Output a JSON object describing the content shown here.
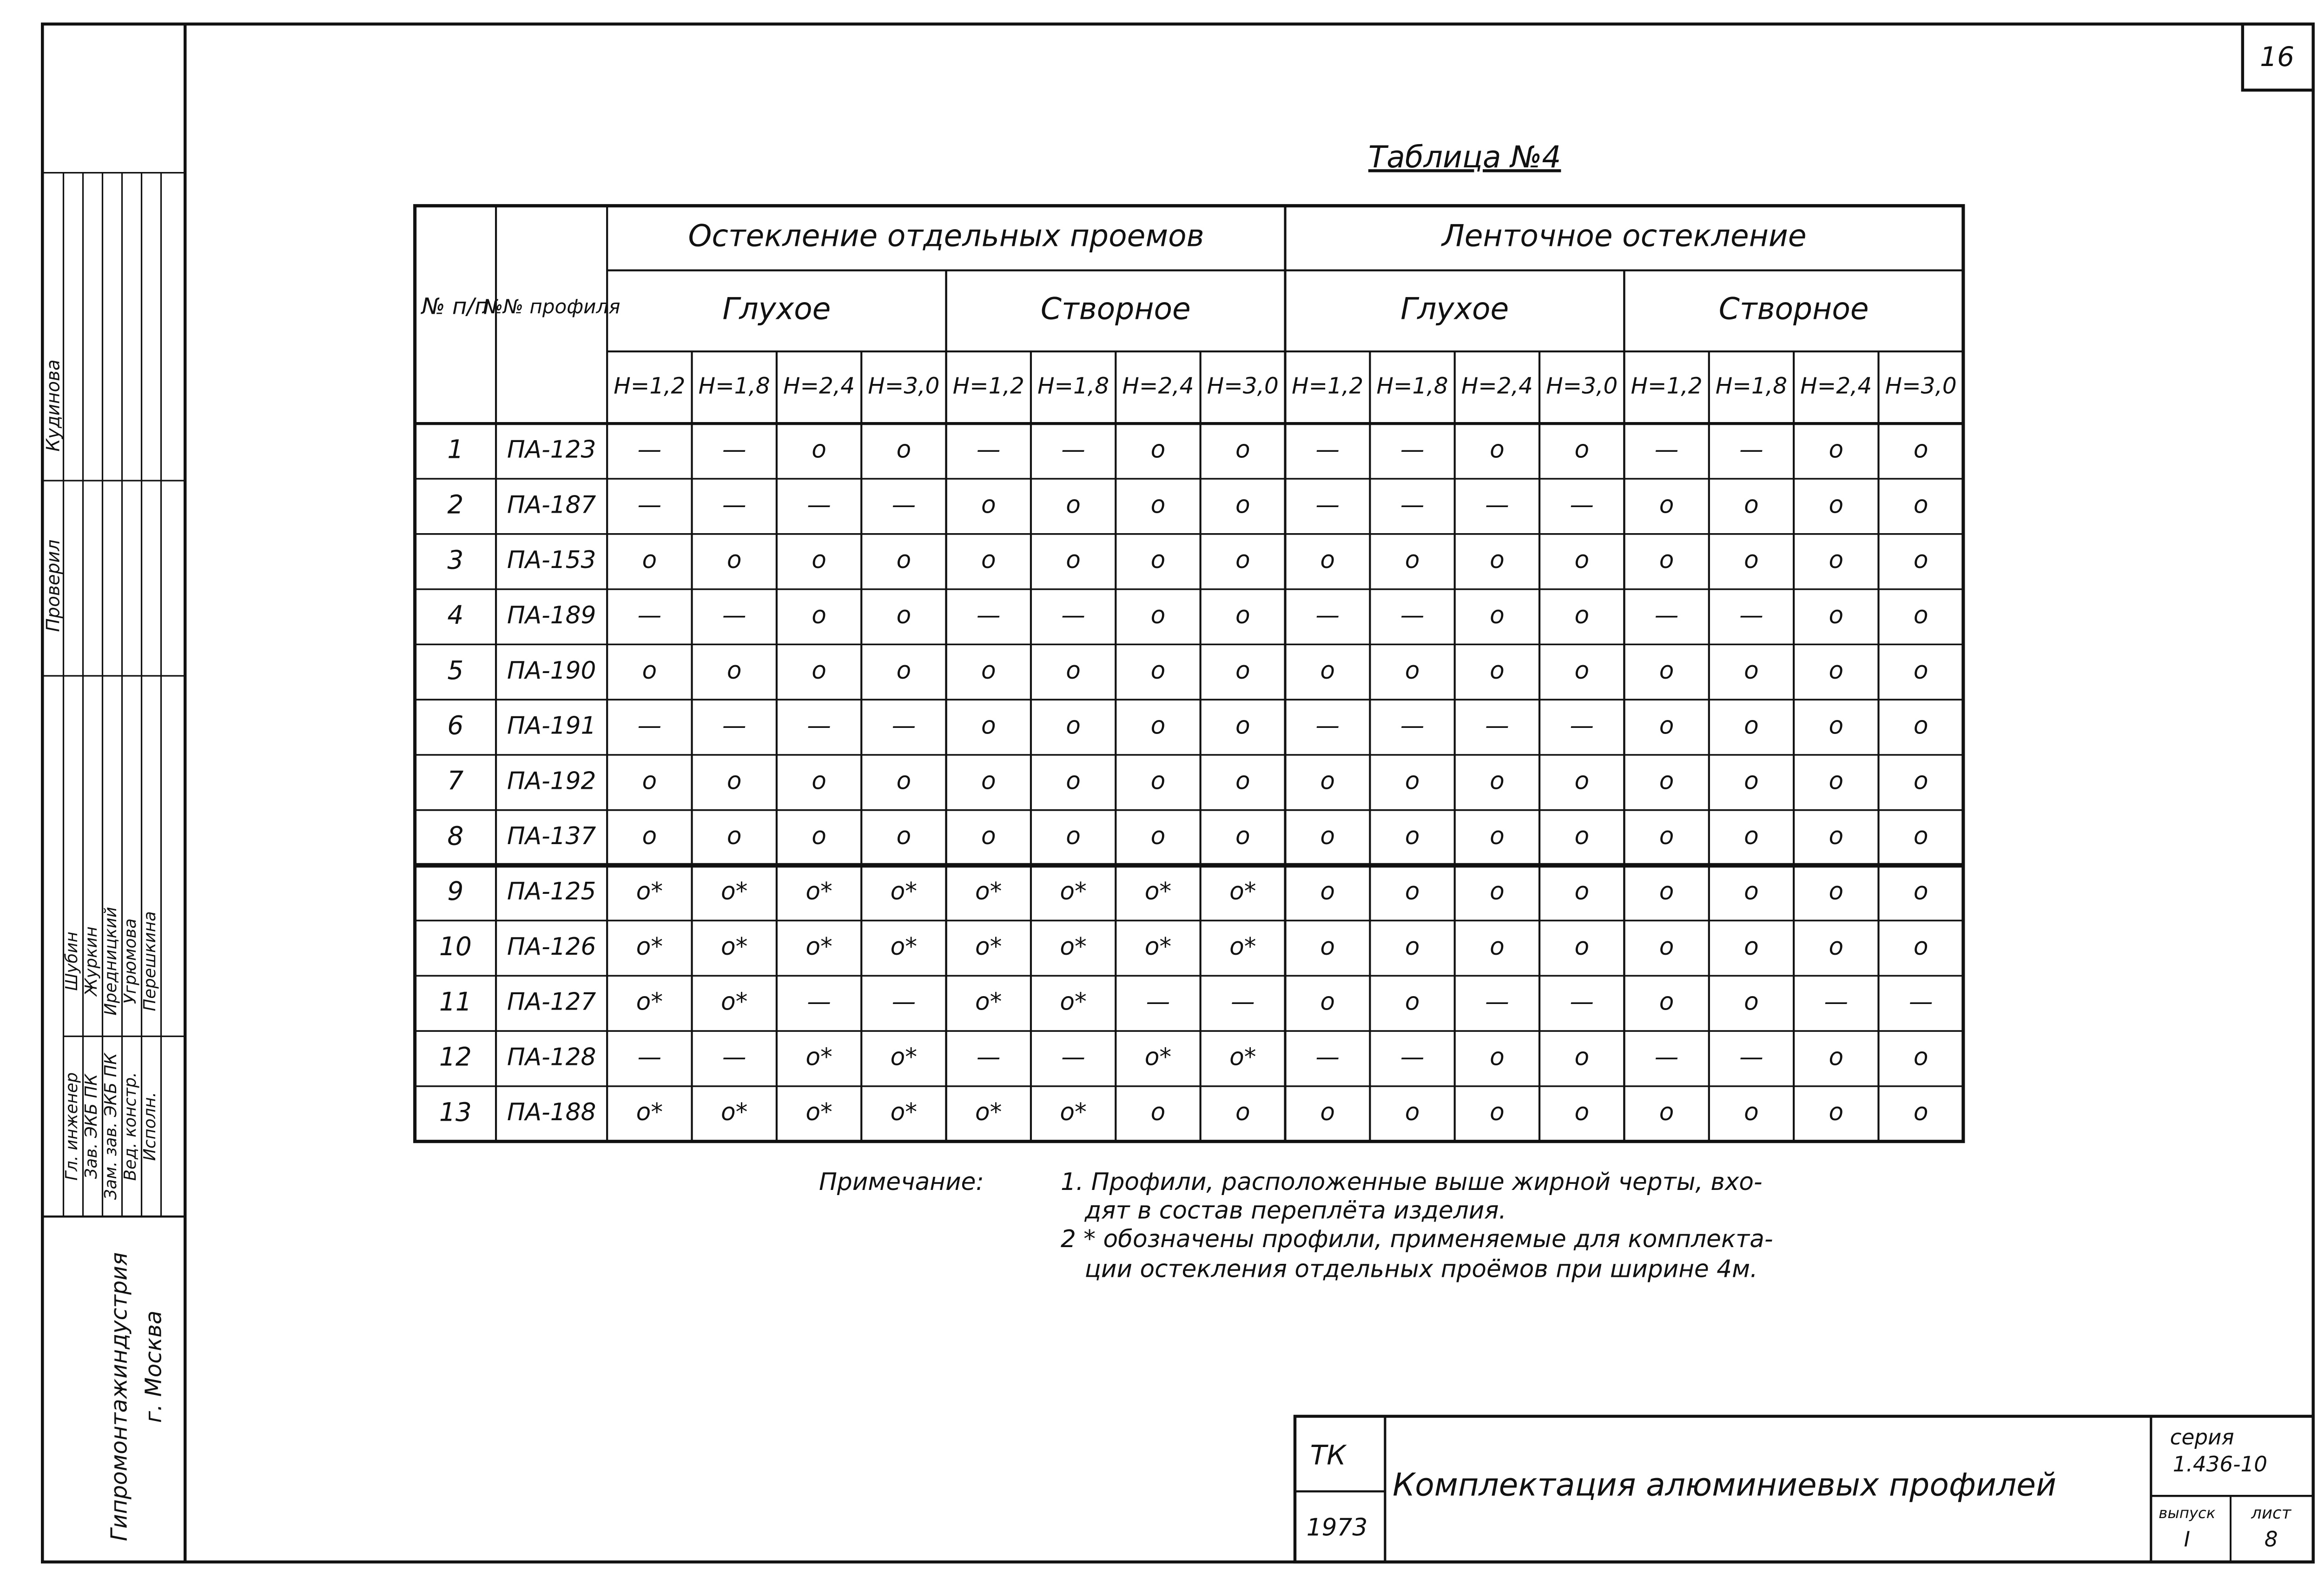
{
  "page_number": "16",
  "table": {
    "title": "Таблица №4",
    "headers": {
      "num": "№ п/п",
      "profile": "№№ профиля",
      "groups": [
        {
          "label": "Остекление отдельных проемов",
          "subgroups": [
            "Глухое",
            "Створное"
          ]
        },
        {
          "label": "Ленточное остекление",
          "subgroups": [
            "Глухое",
            "Створное"
          ]
        }
      ],
      "heights": [
        "Н=1,2",
        "Н=1,8",
        "Н=2,4",
        "Н=3,0",
        "Н=1,2",
        "Н=1,8",
        "Н=2,4",
        "Н=3,0",
        "Н=1,2",
        "Н=1,8",
        "Н=2,4",
        "Н=3,0",
        "Н=1,2",
        "Н=1,8",
        "Н=2,4",
        "Н=3,0"
      ]
    },
    "rows": [
      {
        "num": "1",
        "profile": "ПА-123",
        "cells": [
          "—",
          "—",
          "о",
          "о",
          "—",
          "—",
          "о",
          "о",
          "—",
          "—",
          "о",
          "о",
          "—",
          "—",
          "о",
          "о"
        ]
      },
      {
        "num": "2",
        "profile": "ПА-187",
        "cells": [
          "—",
          "—",
          "—",
          "—",
          "о",
          "о",
          "о",
          "о",
          "—",
          "—",
          "—",
          "—",
          "о",
          "о",
          "о",
          "о"
        ]
      },
      {
        "num": "3",
        "profile": "ПА-153",
        "cells": [
          "о",
          "о",
          "о",
          "о",
          "о",
          "о",
          "о",
          "о",
          "о",
          "о",
          "о",
          "о",
          "о",
          "о",
          "о",
          "о"
        ]
      },
      {
        "num": "4",
        "profile": "ПА-189",
        "cells": [
          "—",
          "—",
          "о",
          "о",
          "—",
          "—",
          "о",
          "о",
          "—",
          "—",
          "о",
          "о",
          "—",
          "—",
          "о",
          "о"
        ]
      },
      {
        "num": "5",
        "profile": "ПА-190",
        "cells": [
          "о",
          "о",
          "о",
          "о",
          "о",
          "о",
          "о",
          "о",
          "о",
          "о",
          "о",
          "о",
          "о",
          "о",
          "о",
          "о"
        ]
      },
      {
        "num": "6",
        "profile": "ПА-191",
        "cells": [
          "—",
          "—",
          "—",
          "—",
          "о",
          "о",
          "о",
          "о",
          "—",
          "—",
          "—",
          "—",
          "о",
          "о",
          "о",
          "о"
        ]
      },
      {
        "num": "7",
        "profile": "ПА-192",
        "cells": [
          "о",
          "о",
          "о",
          "о",
          "о",
          "о",
          "о",
          "о",
          "о",
          "о",
          "о",
          "о",
          "о",
          "о",
          "о",
          "о"
        ]
      },
      {
        "num": "8",
        "profile": "ПА-137",
        "cells": [
          "о",
          "о",
          "о",
          "о",
          "о",
          "о",
          "о",
          "о",
          "о",
          "о",
          "о",
          "о",
          "о",
          "о",
          "о",
          "о"
        ]
      },
      {
        "num": "9",
        "profile": "ПА-125",
        "cells": [
          "о*",
          "о*",
          "о*",
          "о*",
          "о*",
          "о*",
          "о*",
          "о*",
          "о",
          "о",
          "о",
          "о",
          "о",
          "о",
          "о",
          "о"
        ]
      },
      {
        "num": "10",
        "profile": "ПА-126",
        "cells": [
          "о*",
          "о*",
          "о*",
          "о*",
          "о*",
          "о*",
          "о*",
          "о*",
          "о",
          "о",
          "о",
          "о",
          "о",
          "о",
          "о",
          "о"
        ]
      },
      {
        "num": "11",
        "profile": "ПА-127",
        "cells": [
          "о*",
          "о*",
          "—",
          "—",
          "о*",
          "о*",
          "—",
          "—",
          "о",
          "о",
          "—",
          "—",
          "о",
          "о",
          "—",
          "—"
        ]
      },
      {
        "num": "12",
        "profile": "ПА-128",
        "cells": [
          "—",
          "—",
          "о*",
          "о*",
          "—",
          "—",
          "о*",
          "о*",
          "—",
          "—",
          "о",
          "о",
          "—",
          "—",
          "о",
          "о"
        ]
      },
      {
        "num": "13",
        "profile": "ПА-188",
        "cells": [
          "о*",
          "о*",
          "о*",
          "о*",
          "о*",
          "о*",
          "о",
          "о",
          "о",
          "о",
          "о",
          "о",
          "о",
          "о",
          "о",
          "о"
        ]
      }
    ]
  },
  "notes": {
    "label": "Примечание:",
    "items": [
      "1. Профили, расположенные выше жирной черты, вхо-",
      "дят в состав переплёта изделия.",
      "2 * обозначены профили, применяемые для комплекта-",
      "ции остекления отдельных проёмов при ширине 4м."
    ]
  },
  "title_block": {
    "code": "ТК",
    "year": "1973",
    "title": "Комплектация алюминиевых профилей",
    "series_label": "серия",
    "series": "1.436-10",
    "issue_label": "выпуск",
    "issue": "I",
    "sheet_label": "лист",
    "sheet": "8"
  },
  "stamp": {
    "roles": [
      "Гл. инженер",
      "Зав. ЭКБ ПК",
      "Зам. зав. ЭКБ ПК",
      "Вед. констр.",
      "Исполн."
    ],
    "names": [
      "Шубин",
      "Журкин",
      "Иредницкий",
      "Угрюмова",
      "Перешкина"
    ],
    "checked_label": "Проверил",
    "checked_name": "Кудинова",
    "organization": "Гипромонтажиндустрия",
    "city": "г. Москва"
  }
}
